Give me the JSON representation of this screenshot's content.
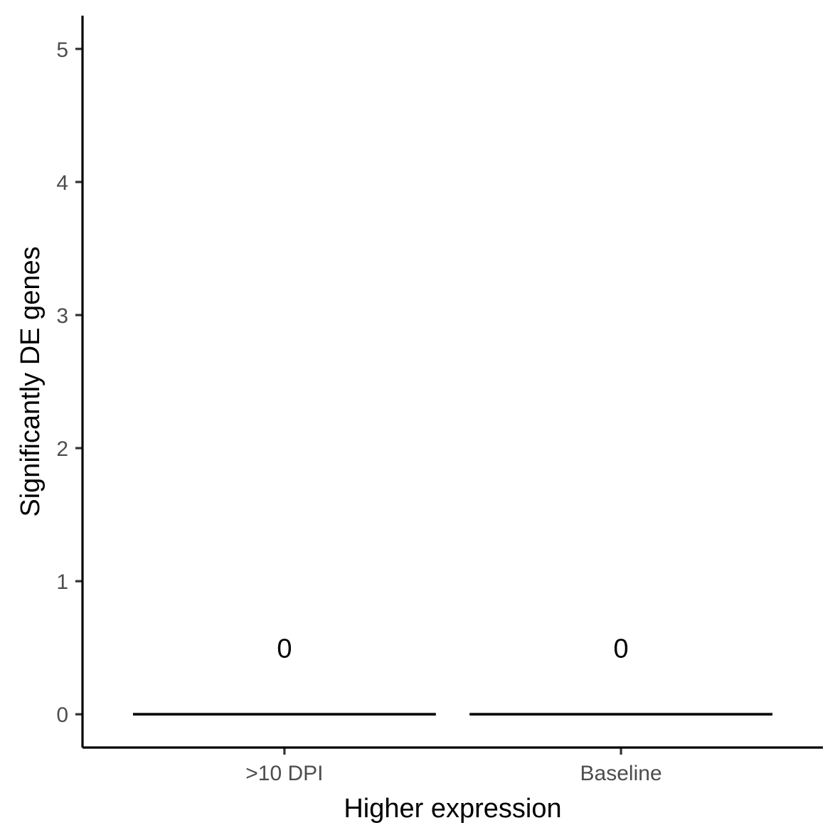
{
  "chart_data": {
    "type": "bar",
    "categories": [
      ">10 DPI",
      "Baseline"
    ],
    "values": [
      0,
      0
    ],
    "data_labels": [
      "0",
      "0"
    ],
    "title": "",
    "xlabel": "Higher expression",
    "ylabel": "Significantly DE genes",
    "ylim": [
      -0.25,
      5.25
    ],
    "yticks": [
      0,
      1,
      2,
      3,
      4,
      5
    ],
    "ytick_labels": [
      "0",
      "1",
      "2",
      "3",
      "4",
      "5"
    ],
    "grid": false,
    "legend": "none",
    "colors": {
      "axis": "#000000",
      "tick_text": "#4d4d4d",
      "bar": "#000000",
      "background": "#ffffff"
    }
  }
}
